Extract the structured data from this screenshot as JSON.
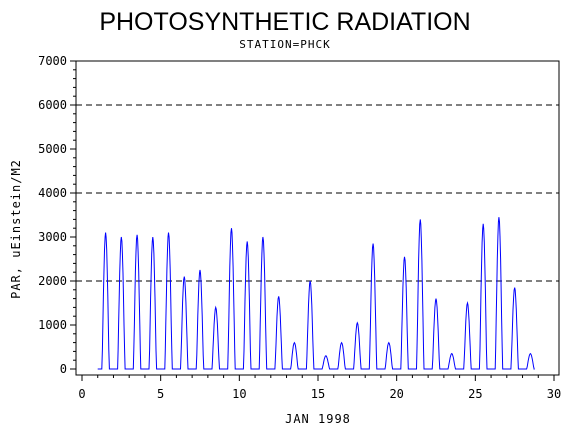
{
  "chart_data": {
    "type": "line",
    "title": "PHOTOSYNTHETIC RADIATION",
    "subtitle": "STATION=PHCK",
    "xlabel": "JAN 1998",
    "ylabel": "PAR, uEinstein/M2",
    "xlim": [
      0,
      30
    ],
    "ylim": [
      0,
      7000
    ],
    "xticks": [
      "0",
      "5",
      "10",
      "15",
      "20",
      "25",
      "30"
    ],
    "yticks": [
      "0",
      "1000",
      "2000",
      "3000",
      "4000",
      "5000",
      "6000",
      "7000"
    ],
    "reference_lines": [
      2000,
      4000,
      6000
    ],
    "line_color": "#0000ff",
    "series": [
      {
        "peaks": [
          [
            1.5,
            3100
          ],
          [
            2.5,
            3000
          ],
          [
            3.5,
            3050
          ],
          [
            4.5,
            3000
          ],
          [
            5.5,
            3100
          ],
          [
            6.5,
            2100
          ],
          [
            7.5,
            2250
          ],
          [
            8.5,
            1400
          ],
          [
            9.5,
            3200
          ],
          [
            10.5,
            2900
          ],
          [
            11.5,
            3000
          ],
          [
            12.5,
            1650
          ],
          [
            13.5,
            600
          ],
          [
            14.5,
            2000
          ],
          [
            15.5,
            300
          ],
          [
            16.5,
            600
          ],
          [
            17.5,
            1050
          ],
          [
            18.5,
            2850
          ],
          [
            19.5,
            600
          ],
          [
            20.5,
            2550
          ],
          [
            21.5,
            3400
          ],
          [
            22.5,
            1600
          ],
          [
            23.5,
            350
          ],
          [
            24.5,
            1500
          ],
          [
            25.5,
            3300
          ],
          [
            26.5,
            3450
          ],
          [
            27.5,
            1850
          ],
          [
            28.5,
            350
          ]
        ]
      }
    ]
  }
}
